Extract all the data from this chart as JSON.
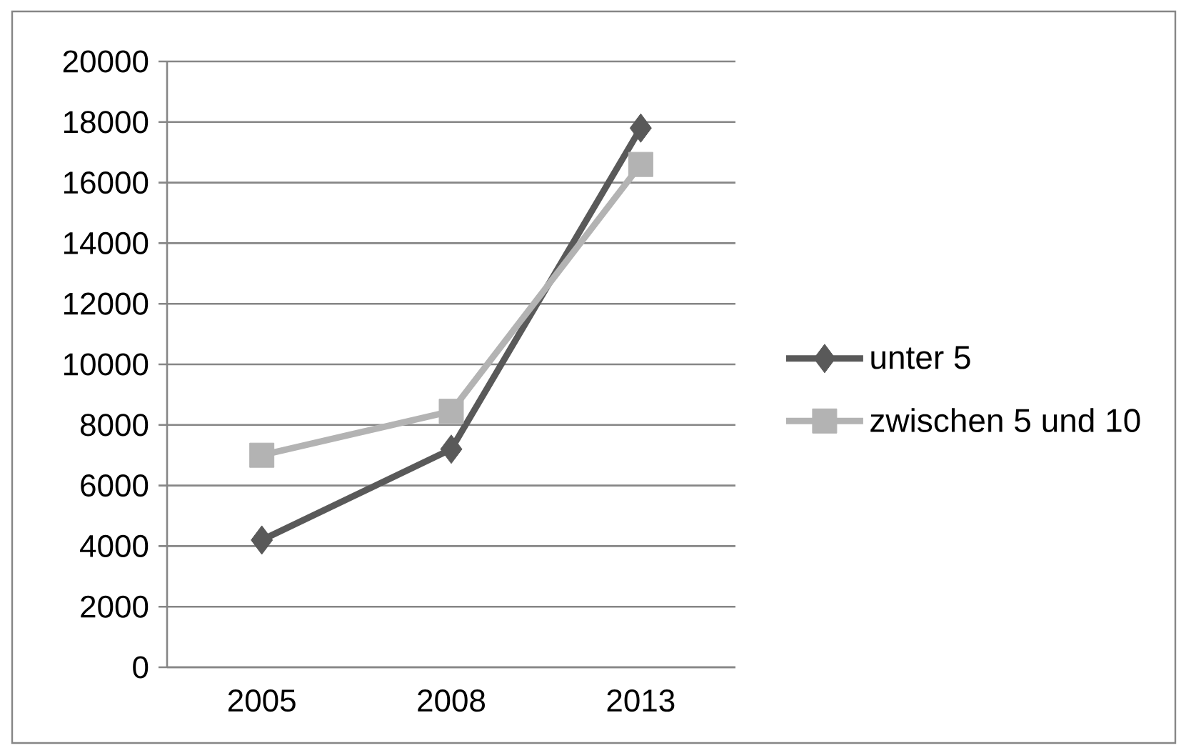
{
  "chart_data": {
    "type": "line",
    "categories": [
      "2005",
      "2008",
      "2013"
    ],
    "series": [
      {
        "name": "unter 5",
        "color": "#595959",
        "marker": "diamond",
        "values": [
          4200,
          7200,
          17800
        ]
      },
      {
        "name": "zwischen 5 und 10",
        "color": "#b3b3b3",
        "marker": "square",
        "values": [
          7000,
          8450,
          16600
        ]
      }
    ],
    "ylim": [
      0,
      20000
    ],
    "yticks": [
      0,
      2000,
      4000,
      6000,
      8000,
      10000,
      12000,
      14000,
      16000,
      18000,
      20000
    ],
    "grid": "y",
    "legend": "right",
    "line_style": "solid"
  }
}
